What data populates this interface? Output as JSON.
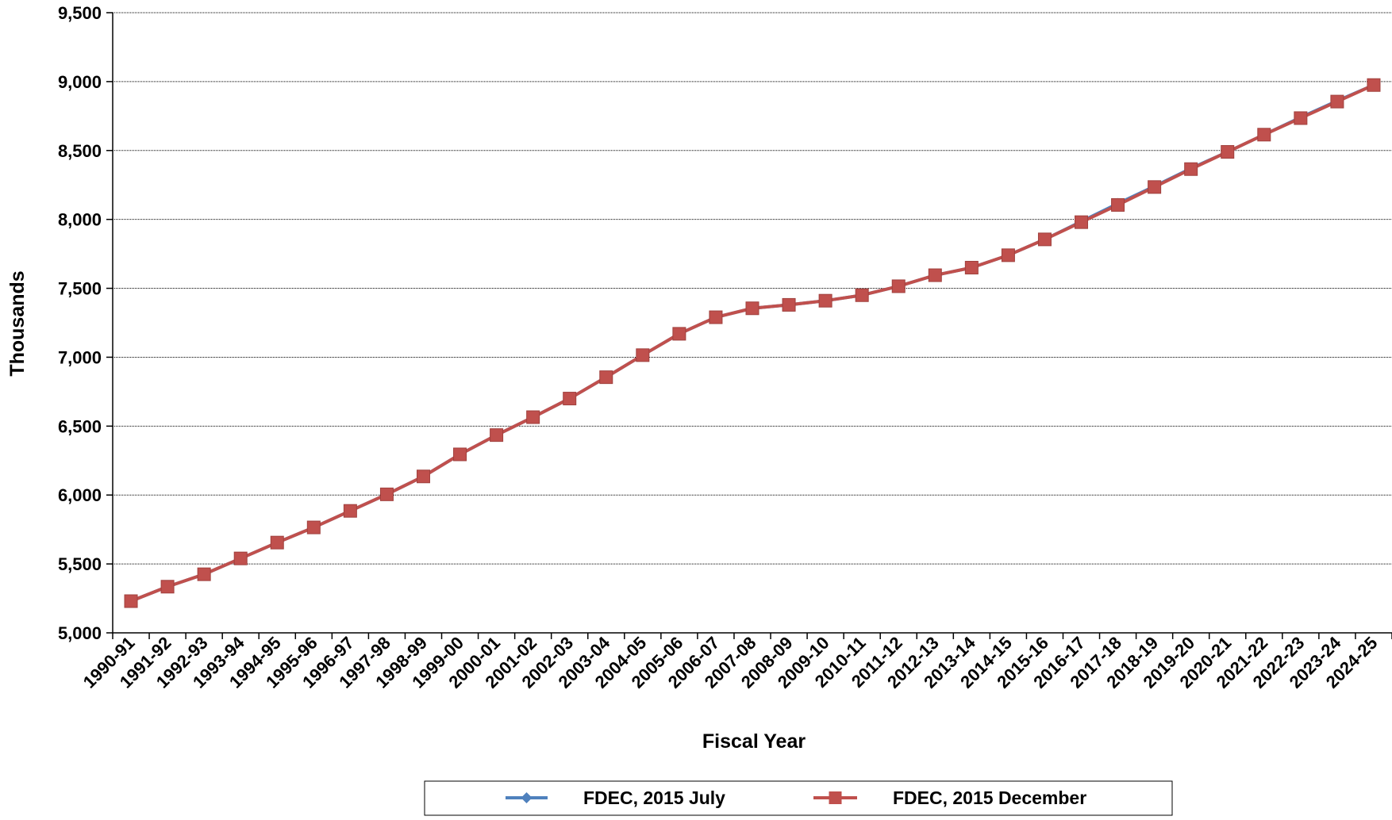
{
  "chart_data": {
    "type": "line",
    "title": "",
    "xlabel": "Fiscal Year",
    "ylabel": "Thousands",
    "ylim": [
      5000,
      9500
    ],
    "yticks": [
      5000,
      5500,
      6000,
      6500,
      7000,
      7500,
      8000,
      8500,
      9000,
      9500
    ],
    "ytick_labels": [
      "5,000",
      "5,500",
      "6,000",
      "6,500",
      "7,000",
      "7,500",
      "8,000",
      "8,500",
      "9,000",
      "9,500"
    ],
    "grid": "horizontal",
    "legend_position": "bottom",
    "categories": [
      "1990-91",
      "1991-92",
      "1992-93",
      "1993-94",
      "1994-95",
      "1995-96",
      "1996-97",
      "1997-98",
      "1998-99",
      "1999-00",
      "2000-01",
      "2001-02",
      "2002-03",
      "2003-04",
      "2004-05",
      "2005-06",
      "2006-07",
      "2007-08",
      "2008-09",
      "2009-10",
      "2010-11",
      "2011-12",
      "2012-13",
      "2013-14",
      "2014-15",
      "2015-16",
      "2016-17",
      "2017-18",
      "2018-19",
      "2019-20",
      "2020-21",
      "2021-22",
      "2022-23",
      "2023-24",
      "2024-25"
    ],
    "series": [
      {
        "name": "FDEC, 2015 July",
        "color": "#4F81BD",
        "marker": "diamond",
        "values": [
          5230,
          5335,
          5425,
          5540,
          5655,
          5765,
          5885,
          6005,
          6135,
          6295,
          6435,
          6565,
          6700,
          6855,
          7015,
          7170,
          7290,
          7355,
          7380,
          7410,
          7450,
          7515,
          7595,
          7650,
          7740,
          7855,
          7985,
          8115,
          8240,
          8370,
          8490,
          8615,
          8740,
          8860,
          8975
        ]
      },
      {
        "name": "FDEC, 2015 December",
        "color": "#C0504D",
        "marker": "square",
        "values": [
          5230,
          5335,
          5425,
          5540,
          5655,
          5765,
          5885,
          6005,
          6135,
          6295,
          6435,
          6565,
          6700,
          6855,
          7015,
          7170,
          7290,
          7355,
          7380,
          7410,
          7450,
          7515,
          7595,
          7650,
          7740,
          7855,
          7980,
          8105,
          8235,
          8365,
          8490,
          8615,
          8735,
          8855,
          8975
        ]
      }
    ]
  }
}
